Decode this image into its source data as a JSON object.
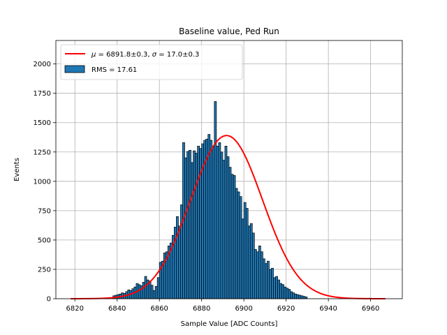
{
  "chart_data": {
    "type": "bar",
    "title": "Baseline value, Ped Run",
    "xlabel": "Sample Value [ADC Counts]",
    "ylabel": "Events",
    "xlim": [
      6811,
      6975
    ],
    "ylim": [
      0,
      2200
    ],
    "xticks": [
      6820,
      6840,
      6860,
      6880,
      6900,
      6920,
      6940,
      6960
    ],
    "yticks": [
      0,
      250,
      500,
      750,
      1000,
      1250,
      1500,
      1750,
      2000
    ],
    "grid": true,
    "legend_position": "top-left",
    "bar_color": "#1f77b4",
    "fit_color": "#ff0000",
    "histogram": {
      "name": "RMS = 17.61",
      "bin_start": 6838,
      "bin_width": 1,
      "counts": [
        25,
        30,
        35,
        40,
        50,
        45,
        60,
        75,
        70,
        85,
        100,
        130,
        120,
        110,
        140,
        190,
        160,
        150,
        115,
        70,
        105,
        180,
        310,
        320,
        390,
        400,
        450,
        475,
        540,
        610,
        700,
        620,
        800,
        1330,
        1200,
        1255,
        1265,
        1160,
        1260,
        1240,
        1300,
        1280,
        1320,
        1350,
        1360,
        1400,
        1350,
        1295,
        1680,
        1300,
        1330,
        1250,
        1180,
        1300,
        1210,
        1120,
        1060,
        1050,
        940,
        910,
        870,
        680,
        820,
        770,
        620,
        640,
        560,
        420,
        400,
        450,
        400,
        340,
        300,
        320,
        250,
        260,
        180,
        190,
        160,
        130,
        120,
        100,
        90,
        80,
        60,
        50,
        40,
        35,
        30,
        25,
        20,
        15
      ]
    },
    "fit": {
      "name": "$\\mu = 6891.8\\pm0.3$, $\\sigma = 17.0\\pm0.3$",
      "mu": 6891.8,
      "sigma": 17.0,
      "amplitude": 1390,
      "x_range": [
        6818,
        6967
      ]
    }
  },
  "legend": {
    "fit_label_mu_symbol": "μ",
    "fit_label_mu_value": " = 6891.8±0.3, ",
    "fit_label_sigma_symbol": "σ",
    "fit_label_sigma_value": " = 17.0±0.3",
    "hist_label": "RMS = 17.61"
  }
}
